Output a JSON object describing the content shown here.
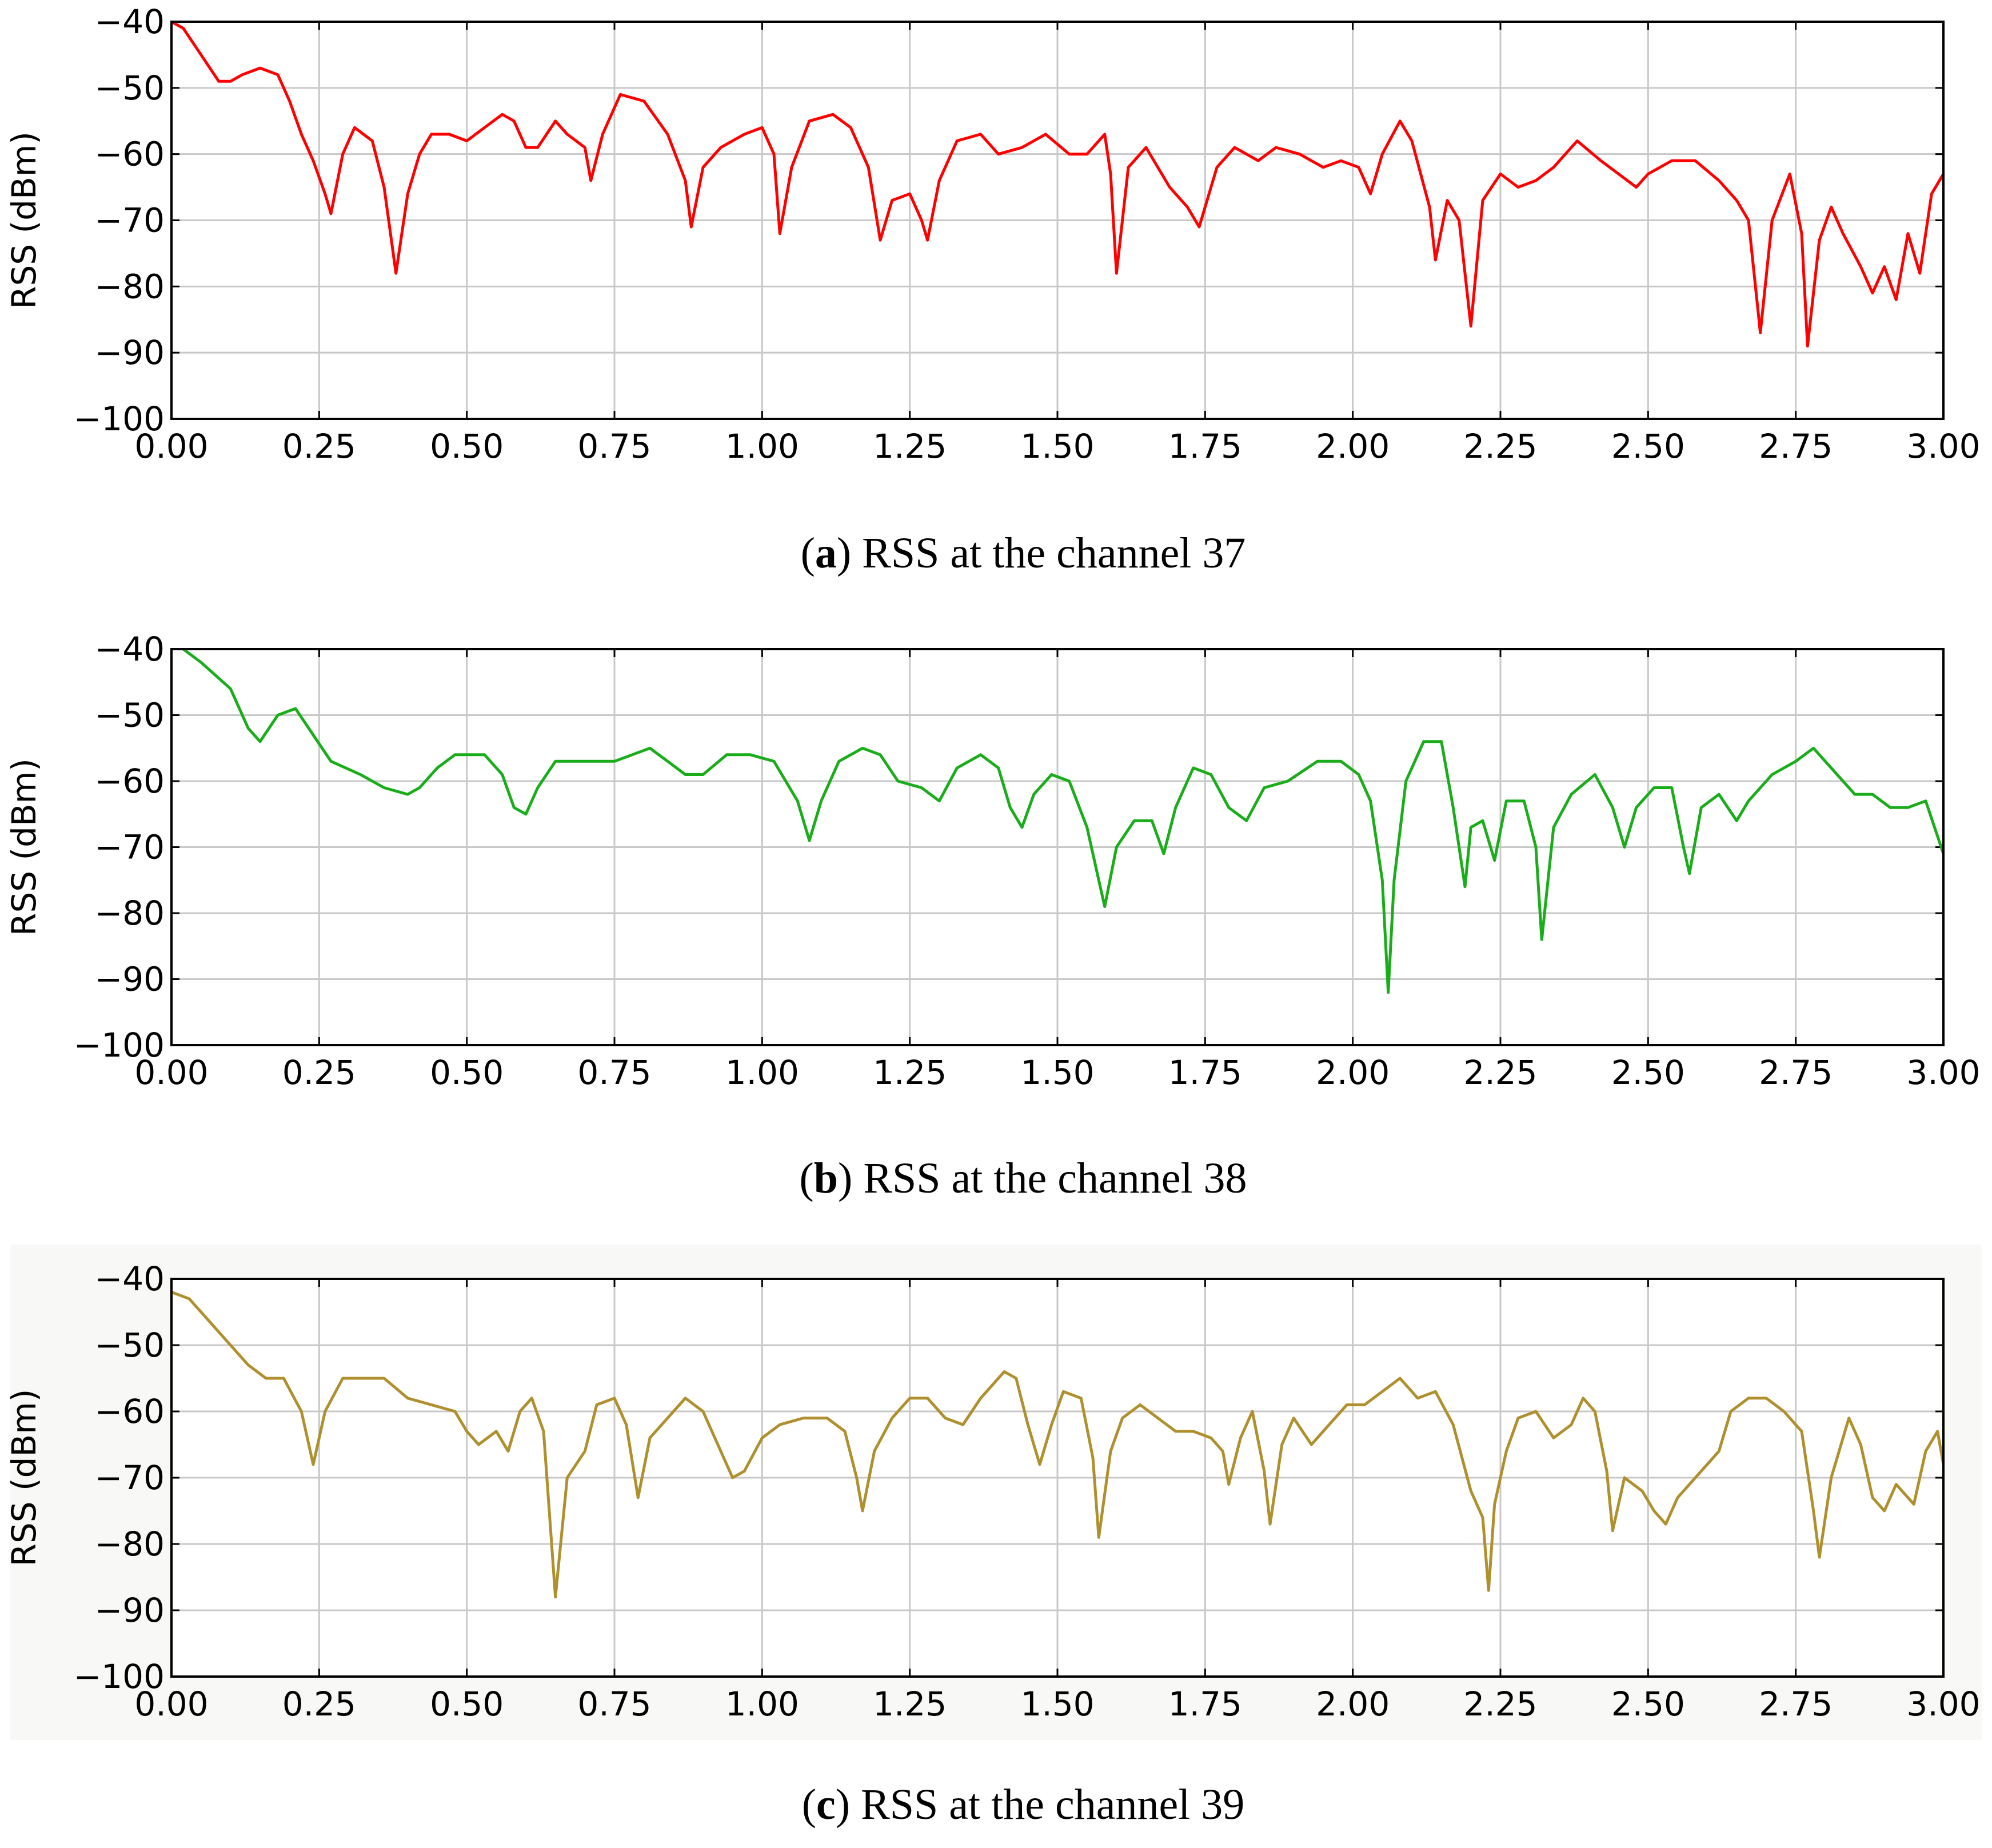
{
  "chart_data": [
    {
      "type": "line",
      "caption": "(a) RSS at the channel 37",
      "y_label": "RSS (dBm)",
      "x": [
        0,
        0.02,
        0.05,
        0.08,
        0.1,
        0.12,
        0.15,
        0.18,
        0.2,
        0.22,
        0.24,
        0.26,
        0.27,
        0.29,
        0.31,
        0.34,
        0.36,
        0.38,
        0.4,
        0.42,
        0.44,
        0.47,
        0.5,
        0.53,
        0.56,
        0.58,
        0.6,
        0.62,
        0.65,
        0.67,
        0.7,
        0.71,
        0.73,
        0.76,
        0.8,
        0.84,
        0.87,
        0.88,
        0.9,
        0.93,
        0.97,
        1.0,
        1.02,
        1.03,
        1.05,
        1.08,
        1.12,
        1.15,
        1.18,
        1.2,
        1.22,
        1.25,
        1.27,
        1.28,
        1.3,
        1.33,
        1.37,
        1.4,
        1.44,
        1.48,
        1.52,
        1.55,
        1.58,
        1.59,
        1.6,
        1.62,
        1.65,
        1.69,
        1.72,
        1.74,
        1.77,
        1.8,
        1.84,
        1.87,
        1.91,
        1.95,
        1.98,
        2.01,
        2.03,
        2.05,
        2.08,
        2.1,
        2.13,
        2.14,
        2.16,
        2.18,
        2.2,
        2.22,
        2.25,
        2.28,
        2.31,
        2.34,
        2.38,
        2.42,
        2.45,
        2.48,
        2.5,
        2.54,
        2.58,
        2.62,
        2.65,
        2.67,
        2.69,
        2.71,
        2.74,
        2.76,
        2.77,
        2.79,
        2.81,
        2.83,
        2.86,
        2.88,
        2.9,
        2.92,
        2.94,
        2.96,
        2.98,
        3.0
      ],
      "series": [
        {
          "color": "#ff0000",
          "values": [
            -40,
            -41,
            -45,
            -49,
            -49,
            -48,
            -47,
            -48,
            -52,
            -57,
            -61,
            -66,
            -69,
            -60,
            -56,
            -58,
            -65,
            -78,
            -66,
            -60,
            -57,
            -57,
            -58,
            -56,
            -54,
            -55,
            -59,
            -59,
            -55,
            -57,
            -59,
            -64,
            -57,
            -51,
            -52,
            -57,
            -64,
            -71,
            -62,
            -59,
            -57,
            -56,
            -60,
            -72,
            -62,
            -55,
            -54,
            -56,
            -62,
            -73,
            -67,
            -66,
            -70,
            -73,
            -64,
            -58,
            -57,
            -60,
            -59,
            -57,
            -60,
            -60,
            -57,
            -63,
            -78,
            -62,
            -59,
            -65,
            -68,
            -71,
            -62,
            -59,
            -61,
            -59,
            -60,
            -62,
            -61,
            -62,
            -66,
            -60,
            -55,
            -58,
            -68,
            -76,
            -67,
            -70,
            -86,
            -67,
            -63,
            -65,
            -64,
            -62,
            -58,
            -61,
            -63,
            -65,
            -63,
            -61,
            -61,
            -64,
            -67,
            -70,
            -87,
            -70,
            -63,
            -72,
            -89,
            -73,
            -68,
            -72,
            -77,
            -81,
            -77,
            -82,
            -72,
            -78,
            -66,
            -63
          ]
        }
      ],
      "xlim": [
        0,
        3
      ],
      "ylim": [
        -100,
        -40
      ],
      "grid": true,
      "xticks": [
        {
          "value": 0,
          "label": "0.00"
        },
        {
          "value": 0.25,
          "label": "0.25"
        },
        {
          "value": 0.5,
          "label": "0.50"
        },
        {
          "value": 0.75,
          "label": "0.75"
        },
        {
          "value": 1,
          "label": "1.00"
        },
        {
          "value": 1.25,
          "label": "1.25"
        },
        {
          "value": 1.5,
          "label": "1.50"
        },
        {
          "value": 1.75,
          "label": "1.75"
        },
        {
          "value": 2,
          "label": "2.00"
        },
        {
          "value": 2.25,
          "label": "2.25"
        },
        {
          "value": 2.5,
          "label": "2.50"
        },
        {
          "value": 2.75,
          "label": "2.75"
        },
        {
          "value": 3,
          "label": "3.00"
        }
      ],
      "yticks": [
        {
          "value": -40,
          "label": "−40"
        },
        {
          "value": -50,
          "label": "−50"
        },
        {
          "value": -60,
          "label": "−60"
        },
        {
          "value": -70,
          "label": "−70"
        },
        {
          "value": -80,
          "label": "−80"
        },
        {
          "value": -90,
          "label": "−90"
        },
        {
          "value": -100,
          "label": "−100"
        }
      ]
    },
    {
      "type": "line",
      "caption": "(b) RSS at the channel 38",
      "y_label": "RSS (dBm)",
      "x": [
        0.02,
        0.05,
        0.1,
        0.13,
        0.15,
        0.18,
        0.21,
        0.24,
        0.27,
        0.32,
        0.36,
        0.4,
        0.42,
        0.45,
        0.48,
        0.53,
        0.56,
        0.58,
        0.6,
        0.62,
        0.65,
        0.7,
        0.75,
        0.78,
        0.81,
        0.84,
        0.87,
        0.9,
        0.94,
        0.98,
        1.02,
        1.06,
        1.08,
        1.1,
        1.13,
        1.17,
        1.2,
        1.23,
        1.27,
        1.3,
        1.33,
        1.37,
        1.4,
        1.42,
        1.44,
        1.46,
        1.49,
        1.52,
        1.55,
        1.57,
        1.58,
        1.6,
        1.63,
        1.66,
        1.68,
        1.7,
        1.73,
        1.76,
        1.79,
        1.82,
        1.85,
        1.89,
        1.94,
        1.98,
        2.01,
        2.03,
        2.05,
        2.06,
        2.07,
        2.09,
        2.12,
        2.15,
        2.17,
        2.19,
        2.2,
        2.22,
        2.24,
        2.26,
        2.29,
        2.31,
        2.32,
        2.34,
        2.37,
        2.41,
        2.44,
        2.46,
        2.48,
        2.51,
        2.54,
        2.56,
        2.57,
        2.59,
        2.62,
        2.65,
        2.67,
        2.71,
        2.75,
        2.78,
        2.81,
        2.85,
        2.88,
        2.91,
        2.94,
        2.97,
        3.0
      ],
      "series": [
        {
          "color": "#1aad1a",
          "values": [
            -40,
            -42,
            -46,
            -52,
            -54,
            -50,
            -49,
            -53,
            -57,
            -59,
            -61,
            -62,
            -61,
            -58,
            -56,
            -56,
            -59,
            -64,
            -65,
            -61,
            -57,
            -57,
            -57,
            -56,
            -55,
            -57,
            -59,
            -59,
            -56,
            -56,
            -57,
            -63,
            -69,
            -63,
            -57,
            -55,
            -56,
            -60,
            -61,
            -63,
            -58,
            -56,
            -58,
            -64,
            -67,
            -62,
            -59,
            -60,
            -67,
            -75,
            -79,
            -70,
            -66,
            -66,
            -71,
            -64,
            -58,
            -59,
            -64,
            -66,
            -61,
            -60,
            -57,
            -57,
            -59,
            -63,
            -75,
            -92,
            -75,
            -60,
            -54,
            -54,
            -64,
            -76,
            -67,
            -66,
            -72,
            -63,
            -63,
            -70,
            -84,
            -67,
            -62,
            -59,
            -64,
            -70,
            -64,
            -61,
            -61,
            -70,
            -74,
            -64,
            -62,
            -66,
            -63,
            -59,
            -57,
            -55,
            -58,
            -62,
            -62,
            -64,
            -64,
            -63,
            -71
          ]
        }
      ],
      "xlim": [
        0,
        3
      ],
      "ylim": [
        -100,
        -40
      ],
      "grid": true,
      "xticks": [
        {
          "value": 0,
          "label": "0.00"
        },
        {
          "value": 0.25,
          "label": "0.25"
        },
        {
          "value": 0.5,
          "label": "0.50"
        },
        {
          "value": 0.75,
          "label": "0.75"
        },
        {
          "value": 1,
          "label": "1.00"
        },
        {
          "value": 1.25,
          "label": "1.25"
        },
        {
          "value": 1.5,
          "label": "1.50"
        },
        {
          "value": 1.75,
          "label": "1.75"
        },
        {
          "value": 2,
          "label": "2.00"
        },
        {
          "value": 2.25,
          "label": "2.25"
        },
        {
          "value": 2.5,
          "label": "2.50"
        },
        {
          "value": 2.75,
          "label": "2.75"
        },
        {
          "value": 3,
          "label": "3.00"
        }
      ],
      "yticks": [
        {
          "value": -40,
          "label": "−40"
        },
        {
          "value": -50,
          "label": "−50"
        },
        {
          "value": -60,
          "label": "−60"
        },
        {
          "value": -70,
          "label": "−70"
        },
        {
          "value": -80,
          "label": "−80"
        },
        {
          "value": -90,
          "label": "−90"
        },
        {
          "value": -100,
          "label": "−100"
        }
      ]
    },
    {
      "type": "line",
      "caption": "(c) RSS at the channel 39",
      "y_label": "RSS (dBm)",
      "background": "#f8f8f6",
      "x": [
        0,
        0.03,
        0.06,
        0.1,
        0.13,
        0.16,
        0.19,
        0.22,
        0.24,
        0.26,
        0.29,
        0.32,
        0.36,
        0.4,
        0.44,
        0.48,
        0.5,
        0.52,
        0.55,
        0.57,
        0.59,
        0.61,
        0.63,
        0.65,
        0.67,
        0.7,
        0.72,
        0.75,
        0.77,
        0.79,
        0.81,
        0.84,
        0.87,
        0.9,
        0.93,
        0.95,
        0.97,
        1.0,
        1.03,
        1.07,
        1.11,
        1.14,
        1.16,
        1.17,
        1.19,
        1.22,
        1.25,
        1.28,
        1.31,
        1.34,
        1.37,
        1.41,
        1.43,
        1.45,
        1.47,
        1.49,
        1.51,
        1.54,
        1.56,
        1.57,
        1.59,
        1.61,
        1.64,
        1.67,
        1.7,
        1.73,
        1.76,
        1.78,
        1.79,
        1.81,
        1.83,
        1.85,
        1.86,
        1.88,
        1.9,
        1.93,
        1.96,
        1.99,
        2.02,
        2.05,
        2.08,
        2.11,
        2.14,
        2.17,
        2.2,
        2.22,
        2.23,
        2.24,
        2.26,
        2.28,
        2.31,
        2.34,
        2.37,
        2.39,
        2.41,
        2.43,
        2.44,
        2.46,
        2.49,
        2.51,
        2.53,
        2.55,
        2.58,
        2.6,
        2.62,
        2.64,
        2.67,
        2.7,
        2.73,
        2.76,
        2.78,
        2.79,
        2.81,
        2.84,
        2.86,
        2.88,
        2.9,
        2.92,
        2.95,
        2.97,
        2.99,
        3.0
      ],
      "series": [
        {
          "color": "#b0902e",
          "values": [
            -42,
            -43,
            -46,
            -50,
            -53,
            -55,
            -55,
            -60,
            -68,
            -60,
            -55,
            -55,
            -55,
            -58,
            -59,
            -60,
            -63,
            -65,
            -63,
            -66,
            -60,
            -58,
            -63,
            -88,
            -70,
            -66,
            -59,
            -58,
            -62,
            -73,
            -64,
            -61,
            -58,
            -60,
            -66,
            -70,
            -69,
            -64,
            -62,
            -61,
            -61,
            -63,
            -70,
            -75,
            -66,
            -61,
            -58,
            -58,
            -61,
            -62,
            -58,
            -54,
            -55,
            -62,
            -68,
            -62,
            -57,
            -58,
            -67,
            -79,
            -66,
            -61,
            -59,
            -61,
            -63,
            -63,
            -64,
            -66,
            -71,
            -64,
            -60,
            -69,
            -77,
            -65,
            -61,
            -65,
            -62,
            -59,
            -59,
            -57,
            -55,
            -58,
            -57,
            -62,
            -72,
            -76,
            -87,
            -74,
            -66,
            -61,
            -60,
            -64,
            -62,
            -58,
            -60,
            -69,
            -78,
            -70,
            -72,
            -75,
            -77,
            -73,
            -70,
            -68,
            -66,
            -60,
            -58,
            -58,
            -60,
            -63,
            -75,
            -82,
            -70,
            -61,
            -65,
            -73,
            -75,
            -71,
            -74,
            -66,
            -63,
            -68
          ]
        }
      ],
      "xlim": [
        0,
        3
      ],
      "ylim": [
        -100,
        -40
      ],
      "grid": true,
      "xticks": [
        {
          "value": 0,
          "label": "0.00"
        },
        {
          "value": 0.25,
          "label": "0.25"
        },
        {
          "value": 0.5,
          "label": "0.50"
        },
        {
          "value": 0.75,
          "label": "0.75"
        },
        {
          "value": 1,
          "label": "1.00"
        },
        {
          "value": 1.25,
          "label": "1.25"
        },
        {
          "value": 1.5,
          "label": "1.50"
        },
        {
          "value": 1.75,
          "label": "1.75"
        },
        {
          "value": 2,
          "label": "2.00"
        },
        {
          "value": 2.25,
          "label": "2.25"
        },
        {
          "value": 2.5,
          "label": "2.50"
        },
        {
          "value": 2.75,
          "label": "2.75"
        },
        {
          "value": 3,
          "label": "3.00"
        }
      ],
      "yticks": [
        {
          "value": -40,
          "label": "−40"
        },
        {
          "value": -50,
          "label": "−50"
        },
        {
          "value": -60,
          "label": "−60"
        },
        {
          "value": -70,
          "label": "−70"
        },
        {
          "value": -80,
          "label": "−80"
        },
        {
          "value": -90,
          "label": "−90"
        },
        {
          "value": -100,
          "label": "−100"
        }
      ]
    }
  ]
}
